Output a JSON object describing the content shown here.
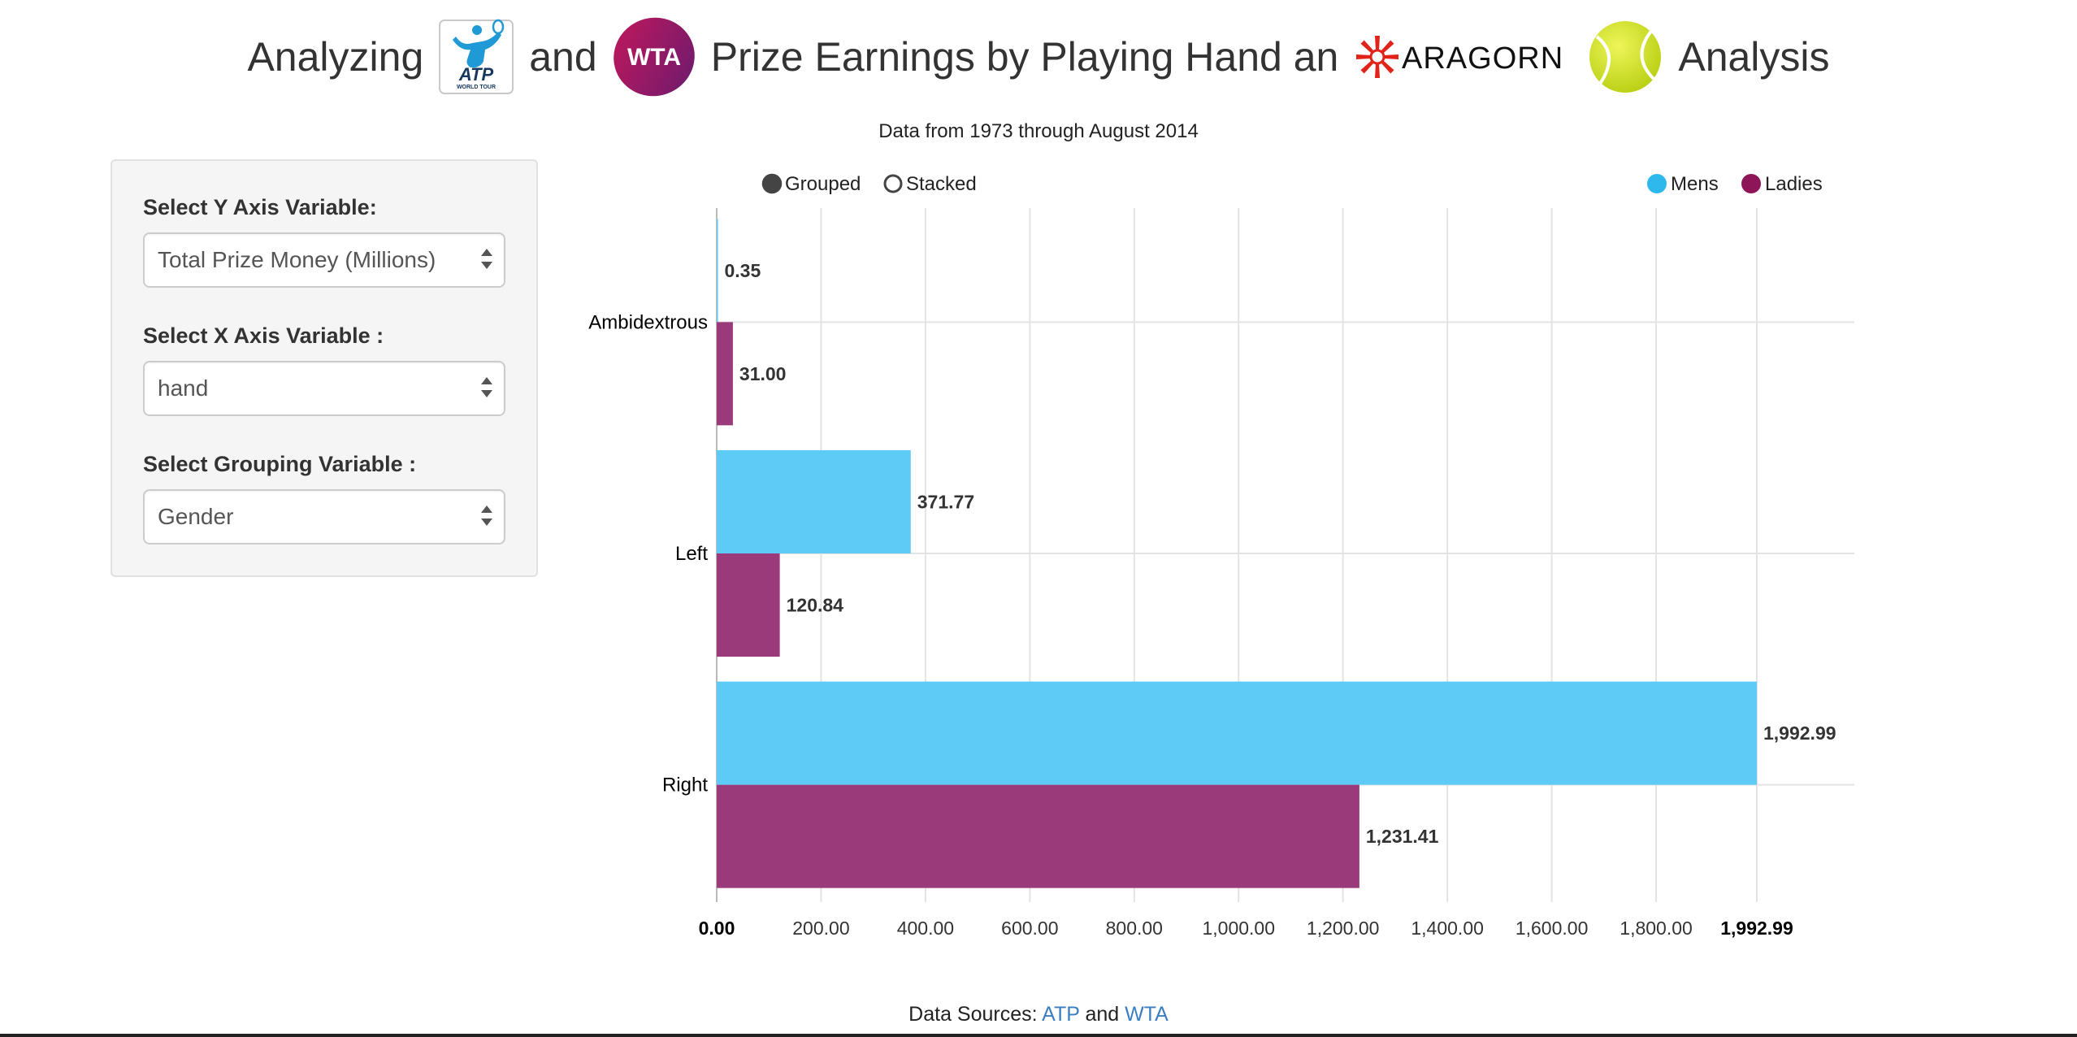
{
  "header": {
    "title_part1": "Analyzing",
    "title_part2": "and",
    "title_part3": "Prize Earnings by Playing Hand an",
    "title_part4": "Analysis",
    "logos": {
      "atp": {
        "text": "ATP",
        "subtext": "WORLD TOUR",
        "color": "#1f9ad6"
      },
      "wta": {
        "text": "WTA",
        "color": "#8e1b6d"
      },
      "aragorn": {
        "text": "ARAGORN",
        "color": "#e2231a"
      },
      "tennis_ball": {
        "icon": "tennis-ball-icon",
        "color": "#d4e81c"
      }
    }
  },
  "subtitle": "Data from 1973 through August 2014",
  "controls": {
    "y_axis": {
      "label": "Select Y Axis Variable:",
      "value": "Total Prize Money (Millions)"
    },
    "x_axis": {
      "label": "Select X Axis Variable :",
      "value": "hand"
    },
    "grouping": {
      "label": "Select Grouping Variable :",
      "value": "Gender"
    }
  },
  "chart_toggle": {
    "options": [
      "Grouped",
      "Stacked"
    ],
    "selected": "Grouped"
  },
  "chart_data": {
    "type": "bar",
    "orientation": "horizontal",
    "categories": [
      "Ambidextrous",
      "Left",
      "Right"
    ],
    "series": [
      {
        "name": "Mens",
        "color": "#5dcbf5",
        "values": [
          0.35,
          371.77,
          1992.99
        ],
        "value_labels": [
          "0.35",
          "371.77",
          "1,992.99"
        ]
      },
      {
        "name": "Ladies",
        "color": "#9b3a7a",
        "values": [
          31.0,
          120.84,
          1231.41
        ],
        "value_labels": [
          "31.00",
          "120.84",
          "1,231.41"
        ]
      }
    ],
    "legend_colors": {
      "Mens": "#2eb8ec",
      "Ladies": "#8e1557"
    },
    "xlim": [
      0,
      1992.99
    ],
    "x_ticks": [
      0,
      200,
      400,
      600,
      800,
      1000,
      1200,
      1400,
      1600,
      1800,
      1992.99
    ],
    "x_tick_labels": [
      "0.00",
      "200.00",
      "400.00",
      "600.00",
      "800.00",
      "1,000.00",
      "1,200.00",
      "1,400.00",
      "1,600.00",
      "1,800.00",
      "1,992.99"
    ],
    "grid": true,
    "legend_position": "top-right"
  },
  "footer": {
    "prefix": "Data Sources:",
    "link1": "ATP",
    "middle": "and",
    "link2": "WTA"
  }
}
